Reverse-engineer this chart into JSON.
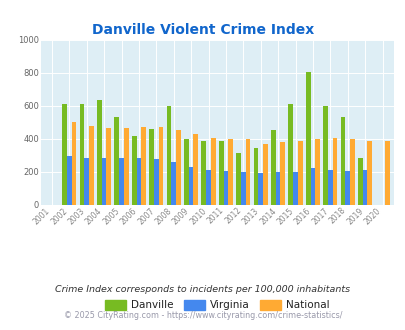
{
  "title": "Danville Violent Crime Index",
  "years": [
    "2001",
    "2002",
    "2003",
    "2004",
    "2005",
    "2006",
    "2007",
    "2008",
    "2009",
    "2010",
    "2011",
    "2012",
    "2013",
    "2014",
    "2015",
    "2016",
    "2017",
    "2018",
    "2019",
    "2020"
  ],
  "danville": [
    0,
    607,
    608,
    635,
    532,
    413,
    458,
    597,
    400,
    387,
    388,
    312,
    345,
    455,
    610,
    805,
    600,
    530,
    280,
    0
  ],
  "virginia": [
    0,
    295,
    280,
    280,
    285,
    285,
    275,
    258,
    225,
    212,
    205,
    200,
    193,
    200,
    200,
    220,
    210,
    205,
    210,
    0
  ],
  "national": [
    0,
    500,
    475,
    465,
    465,
    470,
    468,
    455,
    430,
    405,
    398,
    397,
    370,
    380,
    385,
    398,
    402,
    395,
    387,
    387
  ],
  "danville_color": "#77bb22",
  "virginia_color": "#4488ee",
  "national_color": "#ffaa33",
  "bg_color": "#deeef5",
  "ylim": [
    0,
    1000
  ],
  "yticks": [
    0,
    200,
    400,
    600,
    800,
    1000
  ],
  "title_color": "#1166cc",
  "subtitle": "Crime Index corresponds to incidents per 100,000 inhabitants",
  "footnote": "© 2025 CityRating.com - https://www.cityrating.com/crime-statistics/",
  "footnote_color": "#9999aa",
  "tick_color": "#aaaaaa"
}
